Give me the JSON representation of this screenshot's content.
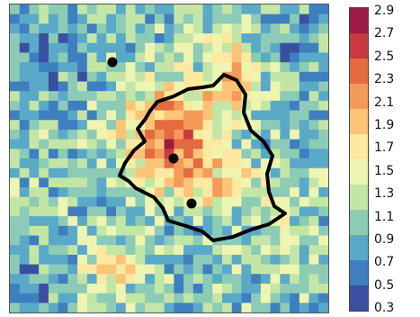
{
  "map": {
    "grid_rows": 32,
    "grid_cols": 33,
    "boundary_color": "#000000",
    "marker_color": "#000000",
    "markers": [
      {
        "name": "north-west"
      },
      {
        "name": "center"
      },
      {
        "name": "south"
      }
    ]
  },
  "colorbar": {
    "min": 0.3,
    "max": 2.9,
    "colors": [
      "#3a4fa0",
      "#3d7fbf",
      "#5aa9c8",
      "#8ccbb5",
      "#c3e6a6",
      "#eef5b0",
      "#fde9a0",
      "#fbc476",
      "#f59a58",
      "#e46a40",
      "#c83a3f",
      "#9c1a45"
    ],
    "ticks": [
      "2.9",
      "2.7",
      "2.5",
      "2.3",
      "2.1",
      "1.9",
      "1.7",
      "1.5",
      "1.3",
      "1.1",
      "0.9",
      "0.7",
      "0.5",
      "0.3"
    ]
  }
}
